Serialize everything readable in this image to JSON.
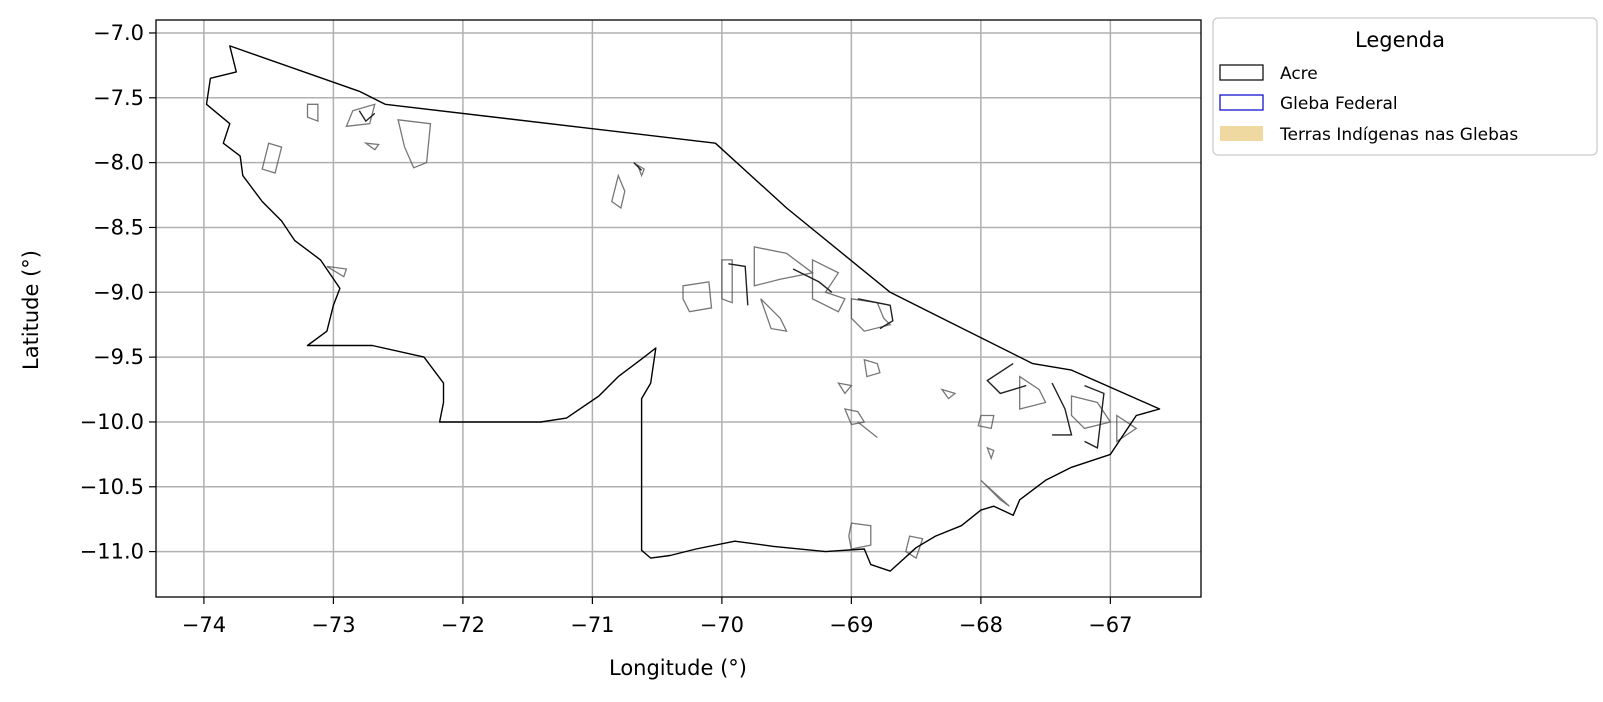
{
  "chart_data": {
    "type": "map",
    "xlabel": "Longitude (°)",
    "ylabel": "Latitude (°)",
    "xlim": [
      -74.37,
      -66.3
    ],
    "ylim": [
      -11.35,
      -6.9
    ],
    "x_ticks": [
      -74,
      -73,
      -72,
      -71,
      -70,
      -69,
      -68,
      -67
    ],
    "x_tick_labels": [
      "−74",
      "−73",
      "−72",
      "−71",
      "−70",
      "−69",
      "−68",
      "−67"
    ],
    "y_ticks": [
      -7.0,
      -7.5,
      -8.0,
      -8.5,
      -9.0,
      -9.5,
      -10.0,
      -10.5,
      -11.0
    ],
    "y_tick_labels": [
      "−7.0",
      "−7.5",
      "−8.0",
      "−8.5",
      "−9.0",
      "−9.5",
      "−10.0",
      "−10.5",
      "−11.0"
    ],
    "grid": true,
    "legend": {
      "title": "Legenda",
      "placement": "outside-top-right",
      "entries": [
        {
          "label": "Acre",
          "edge": "#000000",
          "fill": "none"
        },
        {
          "label": "Gleba Federal",
          "edge": "#0000cc",
          "fill": "none"
        },
        {
          "label": "Terras Indígenas nas Glebas",
          "edge": "none",
          "fill": "#f0d9a0"
        }
      ]
    },
    "colors": {
      "acre_outline": "#000000",
      "gleba_outline": "#555555",
      "grid": "#b0b0b0"
    },
    "layers": {
      "acre_boundary": [
        [
          -73.8,
          -7.1
        ],
        [
          -72.8,
          -7.45
        ],
        [
          -72.6,
          -7.55
        ],
        [
          -70.05,
          -7.85
        ],
        [
          -69.5,
          -8.35
        ],
        [
          -68.7,
          -9.0
        ],
        [
          -68.3,
          -9.2
        ],
        [
          -67.6,
          -9.55
        ],
        [
          -67.3,
          -9.6
        ],
        [
          -66.62,
          -9.9
        ],
        [
          -66.8,
          -9.95
        ],
        [
          -66.9,
          -10.1
        ],
        [
          -67.0,
          -10.25
        ],
        [
          -67.3,
          -10.35
        ],
        [
          -67.5,
          -10.45
        ],
        [
          -67.7,
          -10.6
        ],
        [
          -67.75,
          -10.72
        ],
        [
          -67.9,
          -10.65
        ],
        [
          -68.0,
          -10.68
        ],
        [
          -68.15,
          -10.8
        ],
        [
          -68.35,
          -10.88
        ],
        [
          -68.5,
          -10.97
        ],
        [
          -68.7,
          -11.15
        ],
        [
          -68.85,
          -11.1
        ],
        [
          -68.9,
          -10.98
        ],
        [
          -69.2,
          -11.0
        ],
        [
          -69.6,
          -10.96
        ],
        [
          -69.9,
          -10.92
        ],
        [
          -70.2,
          -10.98
        ],
        [
          -70.4,
          -11.03
        ],
        [
          -70.55,
          -11.05
        ],
        [
          -70.62,
          -10.99
        ],
        [
          -70.62,
          -9.82
        ],
        [
          -70.55,
          -9.7
        ],
        [
          -70.51,
          -9.43
        ],
        [
          -70.6,
          -9.5
        ],
        [
          -70.8,
          -9.65
        ],
        [
          -70.95,
          -9.8
        ],
        [
          -71.2,
          -9.97
        ],
        [
          -71.4,
          -10.0
        ],
        [
          -72.18,
          -10.0
        ],
        [
          -72.15,
          -9.85
        ],
        [
          -72.15,
          -9.7
        ],
        [
          -72.3,
          -9.5
        ],
        [
          -72.7,
          -9.41
        ],
        [
          -73.2,
          -9.41
        ],
        [
          -73.05,
          -9.3
        ],
        [
          -73.0,
          -9.1
        ],
        [
          -72.95,
          -8.97
        ],
        [
          -73.1,
          -8.75
        ],
        [
          -73.3,
          -8.6
        ],
        [
          -73.4,
          -8.45
        ],
        [
          -73.55,
          -8.3
        ],
        [
          -73.7,
          -8.1
        ],
        [
          -73.72,
          -7.95
        ],
        [
          -73.85,
          -7.85
        ],
        [
          -73.8,
          -7.7
        ],
        [
          -73.98,
          -7.55
        ],
        [
          -73.95,
          -7.35
        ],
        [
          -73.75,
          -7.3
        ],
        [
          -73.8,
          -7.1
        ]
      ],
      "glebas": [
        [
          [
            -72.5,
            -7.67
          ],
          [
            -72.25,
            -7.7
          ],
          [
            -72.28,
            -8.0
          ],
          [
            -72.38,
            -8.04
          ],
          [
            -72.45,
            -7.88
          ]
        ],
        [
          [
            -72.85,
            -7.6
          ],
          [
            -72.68,
            -7.55
          ],
          [
            -72.72,
            -7.7
          ],
          [
            -72.9,
            -7.72
          ]
        ],
        [
          [
            -73.2,
            -7.55
          ],
          [
            -73.12,
            -7.55
          ],
          [
            -73.12,
            -7.68
          ],
          [
            -73.2,
            -7.65
          ]
        ],
        [
          [
            -73.5,
            -7.85
          ],
          [
            -73.4,
            -7.88
          ],
          [
            -73.45,
            -8.08
          ],
          [
            -73.55,
            -8.05
          ]
        ],
        [
          [
            -72.75,
            -7.85
          ],
          [
            -72.65,
            -7.86
          ],
          [
            -72.68,
            -7.9
          ]
        ],
        [
          [
            -70.8,
            -8.1
          ],
          [
            -70.75,
            -8.22
          ],
          [
            -70.78,
            -8.35
          ],
          [
            -70.85,
            -8.3
          ]
        ],
        [
          [
            -70.65,
            -8.02
          ],
          [
            -70.6,
            -8.05
          ],
          [
            -70.62,
            -8.1
          ]
        ],
        [
          [
            -70.3,
            -8.95
          ],
          [
            -70.1,
            -8.92
          ],
          [
            -70.08,
            -9.12
          ],
          [
            -70.25,
            -9.15
          ],
          [
            -70.3,
            -9.05
          ]
        ],
        [
          [
            -70.0,
            -8.75
          ],
          [
            -69.92,
            -8.75
          ],
          [
            -69.92,
            -9.08
          ],
          [
            -70.0,
            -9.05
          ]
        ],
        [
          [
            -69.75,
            -8.65
          ],
          [
            -69.5,
            -8.7
          ],
          [
            -69.3,
            -8.85
          ],
          [
            -69.55,
            -8.9
          ],
          [
            -69.75,
            -8.95
          ]
        ],
        [
          [
            -69.3,
            -8.75
          ],
          [
            -69.1,
            -8.85
          ],
          [
            -69.2,
            -9.0
          ],
          [
            -69.05,
            -9.05
          ],
          [
            -69.1,
            -9.15
          ],
          [
            -69.3,
            -9.05
          ]
        ],
        [
          [
            -69.7,
            -9.05
          ],
          [
            -69.55,
            -9.2
          ],
          [
            -69.5,
            -9.3
          ],
          [
            -69.62,
            -9.28
          ]
        ],
        [
          [
            -69.0,
            -9.05
          ],
          [
            -68.8,
            -9.08
          ],
          [
            -68.75,
            -9.2
          ],
          [
            -68.7,
            -9.25
          ],
          [
            -68.9,
            -9.3
          ],
          [
            -69.0,
            -9.2
          ]
        ],
        [
          [
            -68.9,
            -9.52
          ],
          [
            -68.8,
            -9.55
          ],
          [
            -68.78,
            -9.62
          ],
          [
            -68.88,
            -9.65
          ]
        ],
        [
          [
            -69.1,
            -9.7
          ],
          [
            -69.0,
            -9.72
          ],
          [
            -69.05,
            -9.78
          ]
        ],
        [
          [
            -69.05,
            -9.9
          ],
          [
            -68.95,
            -9.92
          ],
          [
            -68.9,
            -10.0
          ],
          [
            -69.0,
            -10.02
          ]
        ],
        [
          [
            -68.95,
            -10.0
          ],
          [
            -68.8,
            -10.12
          ]
        ],
        [
          [
            -68.0,
            -9.95
          ],
          [
            -67.9,
            -9.95
          ],
          [
            -67.92,
            -10.05
          ],
          [
            -68.02,
            -10.03
          ]
        ],
        [
          [
            -67.7,
            -9.65
          ],
          [
            -67.55,
            -9.75
          ],
          [
            -67.5,
            -9.85
          ],
          [
            -67.7,
            -9.9
          ]
        ],
        [
          [
            -67.3,
            -9.8
          ],
          [
            -67.1,
            -9.85
          ],
          [
            -67.0,
            -10.0
          ],
          [
            -67.2,
            -10.05
          ],
          [
            -67.3,
            -9.95
          ]
        ],
        [
          [
            -66.95,
            -9.95
          ],
          [
            -66.8,
            -10.05
          ],
          [
            -66.95,
            -10.15
          ]
        ],
        [
          [
            -68.0,
            -10.45
          ],
          [
            -67.85,
            -10.6
          ],
          [
            -67.78,
            -10.65
          ]
        ],
        [
          [
            -69.0,
            -10.78
          ],
          [
            -68.85,
            -10.8
          ],
          [
            -68.85,
            -10.95
          ],
          [
            -69.0,
            -10.98
          ],
          [
            -69.02,
            -10.88
          ]
        ],
        [
          [
            -68.55,
            -10.88
          ],
          [
            -68.45,
            -10.9
          ],
          [
            -68.5,
            -11.05
          ],
          [
            -68.58,
            -11.0
          ]
        ],
        [
          [
            -67.95,
            -10.2
          ],
          [
            -67.9,
            -10.22
          ],
          [
            -67.92,
            -10.28
          ]
        ],
        [
          [
            -73.05,
            -8.8
          ],
          [
            -72.9,
            -8.82
          ],
          [
            -72.92,
            -8.88
          ]
        ],
        [
          [
            -68.3,
            -9.75
          ],
          [
            -68.2,
            -9.78
          ],
          [
            -68.25,
            -9.82
          ]
        ]
      ],
      "glebas_dark": [
        [
          [
            -67.75,
            -9.55
          ],
          [
            -67.95,
            -9.68
          ],
          [
            -67.85,
            -9.78
          ],
          [
            -67.65,
            -9.72
          ]
        ],
        [
          [
            -67.45,
            -9.7
          ],
          [
            -67.35,
            -9.9
          ],
          [
            -67.3,
            -10.1
          ],
          [
            -67.45,
            -10.1
          ]
        ],
        [
          [
            -67.2,
            -9.72
          ],
          [
            -67.05,
            -9.78
          ],
          [
            -67.1,
            -10.2
          ],
          [
            -67.2,
            -10.15
          ]
        ],
        [
          [
            -69.95,
            -8.78
          ],
          [
            -69.82,
            -8.8
          ],
          [
            -69.8,
            -9.1
          ]
        ],
        [
          [
            -69.45,
            -8.82
          ],
          [
            -69.25,
            -8.92
          ],
          [
            -69.15,
            -9.0
          ]
        ],
        [
          [
            -68.95,
            -9.05
          ],
          [
            -68.7,
            -9.1
          ],
          [
            -68.68,
            -9.22
          ],
          [
            -68.78,
            -9.28
          ]
        ],
        [
          [
            -72.8,
            -7.6
          ],
          [
            -72.75,
            -7.68
          ],
          [
            -72.68,
            -7.62
          ]
        ],
        [
          [
            -70.68,
            -8.0
          ],
          [
            -70.62,
            -8.06
          ]
        ]
      ]
    }
  }
}
